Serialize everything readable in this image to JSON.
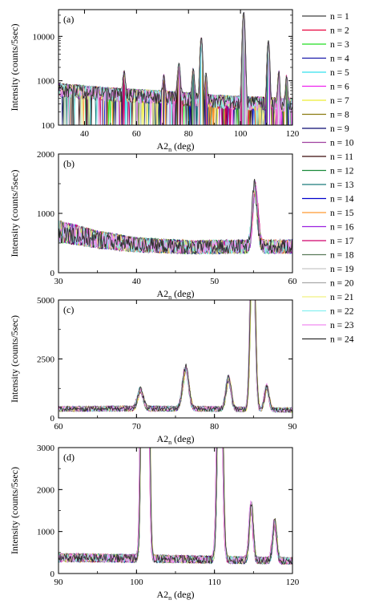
{
  "chart_data": [
    {
      "type": "line",
      "panel_label": "(a)",
      "xlabel": "A2",
      "xlabel_sub": "n",
      "xlabel_unit": "(deg)",
      "ylabel": "Intensity (counts/5sec)",
      "xlim": [
        30,
        120
      ],
      "ylim": [
        100,
        40000
      ],
      "yscale": "log",
      "xticks": [
        "40",
        "60",
        "80",
        "100",
        "120"
      ],
      "yticks": [
        "100",
        "1000",
        "10000"
      ],
      "ytick_values": [
        100,
        1000,
        10000
      ],
      "xtick_values": [
        40,
        60,
        80,
        100,
        120
      ],
      "baseline": [
        [
          30,
          650
        ],
        [
          50,
          520
        ],
        [
          70,
          450
        ],
        [
          90,
          360
        ],
        [
          120,
          300
        ]
      ],
      "peaks": [
        {
          "x": 55.2,
          "y": 1100,
          "w": 0.5
        },
        {
          "x": 70.5,
          "y": 850,
          "w": 0.5
        },
        {
          "x": 76.3,
          "y": 2000,
          "w": 0.6
        },
        {
          "x": 81.8,
          "y": 1500,
          "w": 0.5
        },
        {
          "x": 84.9,
          "y": 9500,
          "w": 0.5
        },
        {
          "x": 86.7,
          "y": 1100,
          "w": 0.4
        },
        {
          "x": 101.2,
          "y": 36000,
          "w": 0.5
        },
        {
          "x": 110.7,
          "y": 8000,
          "w": 0.5
        },
        {
          "x": 114.7,
          "y": 1400,
          "w": 0.4
        },
        {
          "x": 117.7,
          "y": 1000,
          "w": 0.4
        }
      ]
    },
    {
      "type": "line",
      "panel_label": "(b)",
      "xlabel": "A2",
      "xlabel_sub": "n",
      "xlabel_unit": "(deg)",
      "ylabel": "Intensity (counts/5sec)",
      "xlim": [
        30,
        60
      ],
      "ylim": [
        0,
        2000
      ],
      "yscale": "linear",
      "xticks": [
        "30",
        "40",
        "50",
        "60"
      ],
      "yticks": [
        "0",
        "1000",
        "2000"
      ],
      "ytick_values": [
        0,
        1000,
        2000
      ],
      "xtick_values": [
        30,
        40,
        50,
        60
      ],
      "baseline": [
        [
          30,
          700
        ],
        [
          35,
          560
        ],
        [
          40,
          470
        ],
        [
          47,
          430
        ],
        [
          54,
          440
        ],
        [
          60,
          440
        ]
      ],
      "peaks": [
        {
          "x": 55.2,
          "y": 1080,
          "w": 0.45
        }
      ]
    },
    {
      "type": "line",
      "panel_label": "(c)",
      "xlabel": "A2",
      "xlabel_sub": "n",
      "xlabel_unit": "(deg)",
      "ylabel": "Intensity (counts/5sec)",
      "xlim": [
        60,
        90
      ],
      "ylim": [
        0,
        5000
      ],
      "yscale": "linear",
      "xticks": [
        "60",
        "70",
        "80",
        "90"
      ],
      "yticks": [
        "0",
        "2500",
        "5000"
      ],
      "ytick_values": [
        0,
        2500,
        5000
      ],
      "xtick_values": [
        60,
        70,
        80,
        90
      ],
      "baseline": [
        [
          60,
          380
        ],
        [
          70,
          400
        ],
        [
          80,
          380
        ],
        [
          90,
          330
        ]
      ],
      "peaks": [
        {
          "x": 70.5,
          "y": 850,
          "w": 0.5
        },
        {
          "x": 76.3,
          "y": 1850,
          "w": 0.55
        },
        {
          "x": 81.8,
          "y": 1450,
          "w": 0.45
        },
        {
          "x": 84.9,
          "y": 9500,
          "w": 0.4
        },
        {
          "x": 86.7,
          "y": 1050,
          "w": 0.4
        }
      ]
    },
    {
      "type": "line",
      "panel_label": "(d)",
      "xlabel": "A2",
      "xlabel_sub": "n",
      "xlabel_unit": "(deg)",
      "ylabel": "Intensity (counts/5sec)",
      "xlim": [
        90,
        120
      ],
      "ylim": [
        0,
        3000
      ],
      "yscale": "linear",
      "xticks": [
        "90",
        "100",
        "110",
        "120"
      ],
      "yticks": [
        "0",
        "1000",
        "2000",
        "3000"
      ],
      "ytick_values": [
        0,
        1000,
        2000,
        3000
      ],
      "xtick_values": [
        90,
        100,
        110,
        120
      ],
      "baseline": [
        [
          90,
          380
        ],
        [
          100,
          360
        ],
        [
          110,
          330
        ],
        [
          120,
          300
        ]
      ],
      "peaks": [
        {
          "x": 101.1,
          "y": 36000,
          "w": 0.4
        },
        {
          "x": 110.7,
          "y": 8000,
          "w": 0.4
        },
        {
          "x": 114.7,
          "y": 1400,
          "w": 0.35
        },
        {
          "x": 117.7,
          "y": 1000,
          "w": 0.35
        }
      ]
    }
  ],
  "legend": {
    "entries": [
      {
        "label": "n = 1",
        "color": "#404040"
      },
      {
        "label": "n = 2",
        "color": "#e8003c"
      },
      {
        "label": "n = 3",
        "color": "#22dd22"
      },
      {
        "label": "n = 4",
        "color": "#1a1aaa"
      },
      {
        "label": "n = 5",
        "color": "#33e0ee"
      },
      {
        "label": "n = 6",
        "color": "#ee22ee"
      },
      {
        "label": "n = 7",
        "color": "#eeee33"
      },
      {
        "label": "n = 8",
        "color": "#8a7a10"
      },
      {
        "label": "n = 9",
        "color": "#0a0a70"
      },
      {
        "label": "n = 10",
        "color": "#a040a0"
      },
      {
        "label": "n = 11",
        "color": "#3a0a0a"
      },
      {
        "label": "n = 12",
        "color": "#1a8a3a"
      },
      {
        "label": "n = 13",
        "color": "#1a7a7a"
      },
      {
        "label": "n = 14",
        "color": "#0000cc"
      },
      {
        "label": "n = 15",
        "color": "#ff9930"
      },
      {
        "label": "n = 16",
        "color": "#9a20e0"
      },
      {
        "label": "n = 17",
        "color": "#d0006a"
      },
      {
        "label": "n = 18",
        "color": "#5a7a5a"
      },
      {
        "label": "n = 19",
        "color": "#c8c8c8"
      },
      {
        "label": "n = 20",
        "color": "#a8a8a8"
      },
      {
        "label": "n = 21",
        "color": "#f0f080"
      },
      {
        "label": "n = 22",
        "color": "#88f0f0"
      },
      {
        "label": "n = 23",
        "color": "#f08af0"
      },
      {
        "label": "n = 24",
        "color": "#303030"
      }
    ]
  }
}
